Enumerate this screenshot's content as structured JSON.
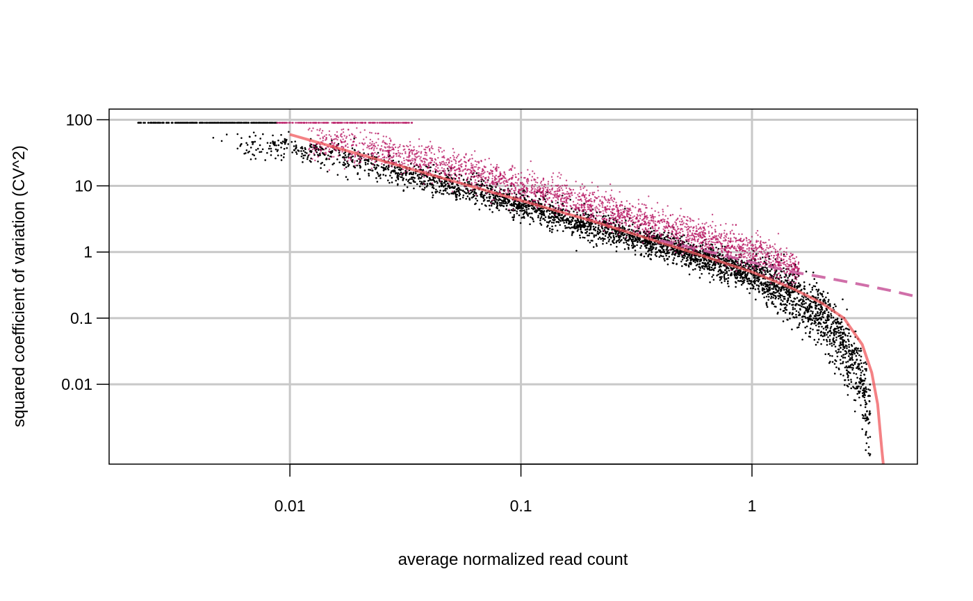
{
  "chart_data": {
    "type": "scatter",
    "title": "",
    "xlabel": "average normalized read count",
    "ylabel": "squared coefficient of variation (CV^2)",
    "x_scale": "log",
    "y_scale": "log",
    "xlim": [
      0.00165,
      5.2
    ],
    "ylim": [
      0.00062,
      145
    ],
    "x_ticks": [
      {
        "value": 0.01,
        "label": "0.01"
      },
      {
        "value": 0.1,
        "label": "0.1"
      },
      {
        "value": 1,
        "label": "1"
      }
    ],
    "y_ticks": [
      {
        "value": 100,
        "label": "100"
      },
      {
        "value": 10,
        "label": "10"
      },
      {
        "value": 1,
        "label": "1"
      },
      {
        "value": 0.1,
        "label": "0.1"
      },
      {
        "value": 0.01,
        "label": "0.01"
      }
    ],
    "grid": true,
    "legend": "none",
    "colors": {
      "points_all": "#000000",
      "points_highlighted": "#b5115f",
      "fit_curve": "#f0585c",
      "technical_noise_line": "#c8569a",
      "grid": "#c8c8c8"
    },
    "series": [
      {
        "kind": "points",
        "color": "#000000",
        "description_points": [
          [
            0.0022,
            90
          ],
          [
            0.0035,
            90
          ],
          [
            0.006,
            90
          ],
          [
            0.0085,
            90
          ],
          [
            0.0045,
            44
          ],
          [
            0.006,
            46
          ],
          [
            0.008,
            48
          ],
          [
            0.01,
            45
          ],
          [
            0.012,
            40
          ],
          [
            0.02,
            28
          ],
          [
            0.05,
            12
          ],
          [
            0.1,
            6
          ],
          [
            0.2,
            3
          ],
          [
            0.5,
            1.2
          ],
          [
            1,
            0.45
          ],
          [
            1.5,
            0.2
          ],
          [
            2,
            0.1
          ],
          [
            2.5,
            0.04
          ],
          [
            3,
            0.01
          ],
          [
            3.2,
            0.002
          ]
        ]
      },
      {
        "kind": "points",
        "color": "#b5115f",
        "description_points": [
          [
            0.009,
            90
          ],
          [
            0.02,
            90
          ],
          [
            0.033,
            90
          ],
          [
            0.012,
            55
          ],
          [
            0.02,
            45
          ],
          [
            0.05,
            25
          ],
          [
            0.1,
            12
          ],
          [
            0.2,
            6
          ],
          [
            0.5,
            2.5
          ],
          [
            1,
            1.3
          ],
          [
            1.5,
            0.7
          ]
        ]
      },
      {
        "kind": "line",
        "style": "solid",
        "color": "#f0585c",
        "x": [
          0.01,
          0.02,
          0.05,
          0.1,
          0.2,
          0.5,
          1,
          1.5,
          2,
          2.5,
          3,
          3.3,
          3.5,
          3.65,
          3.7
        ],
        "y": [
          60,
          30,
          12,
          6,
          3,
          1.1,
          0.5,
          0.28,
          0.17,
          0.1,
          0.04,
          0.015,
          0.005,
          0.001,
          0.00062
        ]
      },
      {
        "kind": "line",
        "style": "dashed",
        "color": "#c8569a",
        "x": [
          0.4,
          0.7,
          1,
          1.5,
          2,
          3,
          4,
          5.2
        ],
        "y": [
          1.5,
          0.95,
          0.7,
          0.5,
          0.42,
          0.32,
          0.26,
          0.21
        ]
      }
    ]
  }
}
